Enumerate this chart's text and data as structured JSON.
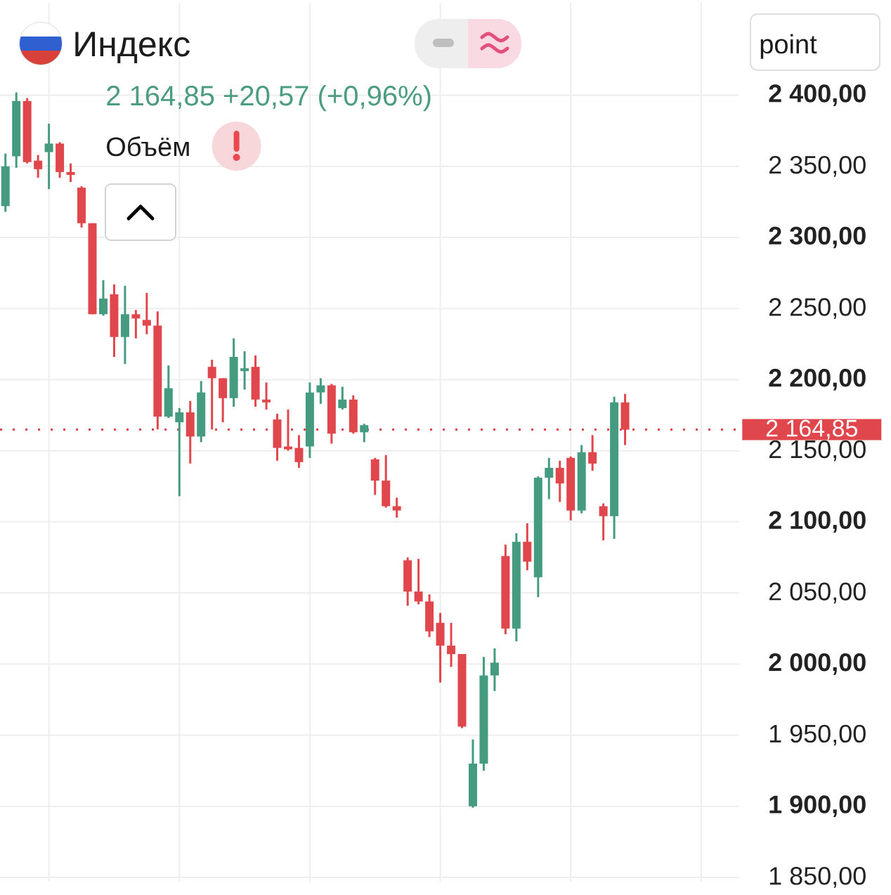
{
  "chart_data": {
    "type": "candlestick",
    "title": "Индекс",
    "subtitle": "2 164,85 +20,57 (+0,96%)",
    "ylabel": "point",
    "annotations": [
      "Объём"
    ],
    "categories": [
      null,
      null,
      null,
      null,
      null,
      null,
      null,
      null,
      null,
      null,
      null,
      null,
      null,
      null,
      null,
      null,
      null,
      null,
      null,
      null,
      null,
      null,
      null,
      null,
      null,
      null,
      null,
      null,
      null,
      null,
      null,
      null,
      null,
      null,
      null,
      null,
      null,
      null,
      null,
      null,
      null,
      null,
      null,
      null,
      null,
      null,
      null,
      null,
      null,
      null,
      null,
      null,
      null,
      null,
      null,
      null,
      null,
      null,
      null,
      null,
      null,
      null,
      null,
      null,
      null,
      null,
      null,
      null
    ],
    "ohlc": [
      [
        2322,
        2359,
        2318,
        2350
      ],
      [
        2357,
        2402,
        2349,
        2396
      ],
      [
        2396,
        2398,
        2352,
        2353
      ],
      [
        2354,
        2358,
        2342,
        2348
      ],
      [
        2360,
        2380,
        2334,
        2366
      ],
      [
        2366,
        2367,
        2342,
        2346
      ],
      [
        2346,
        2352,
        2339,
        2344
      ],
      [
        2335,
        2336,
        2307,
        2310
      ],
      [
        2310,
        2310,
        2246,
        2246
      ],
      [
        2246,
        2270,
        2245,
        2257
      ],
      [
        2260,
        2267,
        2216,
        2230
      ],
      [
        2230,
        2266,
        2211,
        2246
      ],
      [
        2246,
        2249,
        2229,
        2243
      ],
      [
        2242,
        2261,
        2232,
        2238
      ],
      [
        2238,
        2248,
        2165,
        2174
      ],
      [
        2174,
        2210,
        2173,
        2194
      ],
      [
        2170,
        2180,
        2118,
        2177
      ],
      [
        2177,
        2185,
        2141,
        2160
      ],
      [
        2160,
        2199,
        2156,
        2191
      ],
      [
        2209,
        2214,
        2165,
        2201
      ],
      [
        2201,
        2201,
        2170,
        2187
      ],
      [
        2187,
        2229,
        2181,
        2216
      ],
      [
        2206,
        2220,
        2193,
        2208
      ],
      [
        2209,
        2217,
        2181,
        2186
      ],
      [
        2186,
        2198,
        2179,
        2184
      ],
      [
        2172,
        2176,
        2143,
        2152
      ],
      [
        2153,
        2179,
        2150,
        2151
      ],
      [
        2152,
        2161,
        2138,
        2142
      ],
      [
        2153,
        2198,
        2145,
        2191
      ],
      [
        2191,
        2201,
        2183,
        2196
      ],
      [
        2196,
        2197,
        2155,
        2162
      ],
      [
        2180,
        2195,
        2179,
        2186
      ],
      [
        2186,
        2189,
        2162,
        2163
      ],
      [
        2163,
        2169,
        2156,
        2168
      ],
      [
        2144,
        2145,
        2119,
        2129
      ],
      [
        2129,
        2147,
        2110,
        2111
      ],
      [
        2111,
        2117,
        2103,
        2108
      ],
      [
        2073,
        2075,
        2041,
        2051
      ],
      [
        2051,
        2074,
        2042,
        2044
      ],
      [
        2044,
        2049,
        2019,
        2023
      ],
      [
        2029,
        2036,
        1987,
        2013
      ],
      [
        2013,
        2029,
        1998,
        2007
      ],
      [
        2007,
        2007,
        1955,
        1956
      ],
      [
        1900,
        1947,
        1899,
        1930
      ],
      [
        1930,
        2005,
        1925,
        1992
      ],
      [
        1992,
        2011,
        1981,
        2001
      ],
      [
        2076,
        2084,
        2021,
        2025
      ],
      [
        2025,
        2092,
        2016,
        2086
      ],
      [
        2086,
        2099,
        2066,
        2072
      ],
      [
        2061,
        2132,
        2047,
        2131
      ],
      [
        2131,
        2145,
        2116,
        2138
      ],
      [
        2138,
        2143,
        2114,
        2127
      ],
      [
        2145,
        2146,
        2101,
        2108
      ],
      [
        2108,
        2154,
        2106,
        2149
      ],
      [
        2149,
        2161,
        2136,
        2141
      ],
      [
        2111,
        2113,
        2087,
        2104
      ],
      [
        2104,
        2188,
        2088,
        2184
      ],
      [
        2184,
        2190,
        2154,
        2164.85
      ],
      null,
      null,
      null,
      null,
      null,
      null,
      null,
      null,
      null,
      null
    ],
    "colors": [
      "#459b80",
      "#459b80",
      "#e0474c",
      "#e0474c",
      "#459b80",
      "#e0474c",
      "#e0474c",
      "#e0474c",
      "#e0474c",
      "#459b80",
      "#e0474c",
      "#459b80",
      "#e0474c",
      "#e0474c",
      "#e0474c",
      "#459b80",
      "#459b80",
      "#e0474c",
      "#459b80",
      "#e0474c",
      "#e0474c",
      "#459b80",
      "#459b80",
      "#e0474c",
      "#e0474c",
      "#e0474c",
      "#e0474c",
      "#e0474c",
      "#459b80",
      "#459b80",
      "#e0474c",
      "#459b80",
      "#e0474c",
      "#459b80",
      "#e0474c",
      "#e0474c",
      "#e0474c",
      "#e0474c",
      "#e0474c",
      "#e0474c",
      "#e0474c",
      "#e0474c",
      "#e0474c",
      "#459b80",
      "#459b80",
      "#459b80",
      "#e0474c",
      "#459b80",
      "#e0474c",
      "#459b80",
      "#459b80",
      "#e0474c",
      "#e0474c",
      "#459b80",
      "#e0474c",
      "#e0474c",
      "#459b80",
      "#e0474c",
      null,
      null,
      null,
      null,
      null,
      null,
      null,
      null,
      null,
      null
    ],
    "ylim": [
      1847,
      2465
    ],
    "yticks": [
      {
        "value": 1850,
        "label": "1 850,00"
      },
      {
        "value": 1900,
        "label": "1 900,00"
      },
      {
        "value": 1950,
        "label": "1 950,00"
      },
      {
        "value": 2000,
        "label": "2 000,00"
      },
      {
        "value": 2050,
        "label": "2 050,00"
      },
      {
        "value": 2100,
        "label": "2 100,00"
      },
      {
        "value": 2150,
        "label": "2 150,00"
      },
      {
        "value": 2200,
        "label": "2 200,00"
      },
      {
        "value": 2250,
        "label": "2 250,00"
      },
      {
        "value": 2300,
        "label": "2 300,00"
      },
      {
        "value": 2350,
        "label": "2 350,00"
      },
      {
        "value": 2400,
        "label": "2 400,00"
      }
    ],
    "grid": true,
    "ref_lines": [
      {
        "axis": "y",
        "value": 2164.85,
        "label": "2 164,85",
        "color": "#e0474c",
        "line_style": "dotted"
      }
    ]
  }
}
